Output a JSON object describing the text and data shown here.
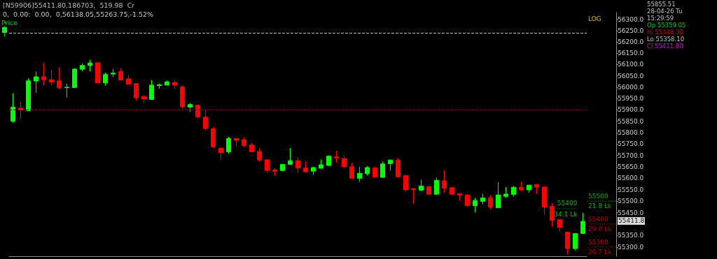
{
  "chart_data": {
    "type": "candlestick",
    "title": "[N59906]55411.80,186703,  519.98  Cr",
    "subtitle": "0,  0.00:  0.00,  0,56138.05,55263.75,-1.52%",
    "ylabel": "Price",
    "categories": [
      null,
      null,
      null,
      null,
      null,
      null,
      null,
      null,
      null,
      null,
      null,
      null,
      null,
      null,
      null,
      null,
      null,
      null,
      null,
      null,
      null,
      null,
      null,
      null,
      null,
      null,
      null,
      null,
      null,
      null,
      null,
      null,
      null,
      null,
      null,
      null,
      null,
      null,
      null,
      null,
      null,
      null,
      null,
      null,
      null,
      null,
      null,
      null,
      null,
      null,
      null,
      null,
      null,
      null,
      null,
      null,
      null,
      null,
      null,
      null,
      null,
      null,
      null,
      null,
      null,
      null,
      null,
      null,
      null,
      null,
      null,
      null,
      null,
      null,
      null
    ],
    "ohlc": [
      [
        55850,
        55973,
        55843,
        55912
      ],
      [
        55908,
        55937,
        55861,
        55899
      ],
      [
        55896,
        56039,
        55896,
        56028
      ],
      [
        56027,
        56069,
        55976,
        56046
      ],
      [
        56046,
        56108,
        56009,
        56033
      ],
      [
        56033,
        56078,
        56009,
        56023
      ],
      [
        56028,
        56087,
        55990,
        55998
      ],
      [
        55998,
        56016,
        55955,
        56000
      ],
      [
        55998,
        56084,
        55998,
        56080
      ],
      [
        56079,
        56105,
        56070,
        56096
      ],
      [
        56096,
        56121,
        56069,
        56107
      ],
      [
        56108,
        56111,
        56019,
        56019
      ],
      [
        56019,
        56065,
        56007,
        56056
      ],
      [
        56058,
        56080,
        56045,
        56062
      ],
      [
        56069,
        56083,
        56031,
        56032
      ],
      [
        56037,
        56054,
        56013,
        56013
      ],
      [
        56016,
        56016,
        55941,
        55953
      ],
      [
        55959,
        55966,
        55929,
        55948
      ],
      [
        55946,
        56032,
        55946,
        56009
      ],
      [
        56007,
        56017,
        55994,
        56011
      ],
      [
        56009,
        56029,
        56009,
        56024
      ],
      [
        56021,
        56029,
        55993,
        56009
      ],
      [
        56001,
        56007,
        55907,
        55914
      ],
      [
        55912,
        55931,
        55891,
        55924
      ],
      [
        55921,
        55921,
        55863,
        55870
      ],
      [
        55868,
        55898,
        55810,
        55818
      ],
      [
        55817,
        55825,
        55733,
        55738
      ],
      [
        55732,
        55735,
        55680,
        55712
      ],
      [
        55716,
        55782,
        55707,
        55774
      ],
      [
        55774,
        55777,
        55741,
        55766
      ],
      [
        55769,
        55779,
        55737,
        55744
      ],
      [
        55746,
        55755,
        55716,
        55716
      ],
      [
        55717,
        55731,
        55673,
        55680
      ],
      [
        55681,
        55681,
        55622,
        55634
      ],
      [
        55636,
        55643,
        55610,
        55630
      ],
      [
        55634,
        55663,
        55630,
        55661
      ],
      [
        55661,
        55733,
        55659,
        55677
      ],
      [
        55677,
        55692,
        55622,
        55645
      ],
      [
        55645,
        55675,
        55628,
        55628
      ],
      [
        55631,
        55649,
        55614,
        55647
      ],
      [
        55644,
        55682,
        55642,
        55659
      ],
      [
        55656,
        55699,
        55656,
        55697
      ],
      [
        55694,
        55720,
        55668,
        55688
      ],
      [
        55687,
        55699,
        55647,
        55650
      ],
      [
        55651,
        55668,
        55598,
        55600
      ],
      [
        55600,
        55650,
        55584,
        55622
      ],
      [
        55620,
        55654,
        55612,
        55647
      ],
      [
        55645,
        55653,
        55605,
        55605
      ],
      [
        55604,
        55673,
        55604,
        55663
      ],
      [
        55664,
        55680,
        55633,
        55680
      ],
      [
        55680,
        55688,
        55606,
        55606
      ],
      [
        55612,
        55612,
        55542,
        55549
      ],
      [
        55554,
        55557,
        55489,
        55550
      ],
      [
        55548,
        55594,
        55542,
        55566
      ],
      [
        55564,
        55564,
        55530,
        55530
      ],
      [
        55530,
        55602,
        55528,
        55591
      ],
      [
        55589,
        55634,
        55536,
        55557
      ],
      [
        55559,
        55559,
        55530,
        55530
      ],
      [
        55533,
        55533,
        55502,
        55526
      ],
      [
        55527,
        55530,
        55480,
        55480
      ],
      [
        55480,
        55515,
        55450,
        55503
      ],
      [
        55499,
        55533,
        55487,
        55514
      ],
      [
        55515,
        55528,
        55464,
        55474
      ],
      [
        55471,
        55583,
        55471,
        55527
      ],
      [
        55521,
        55562,
        55514,
        55531
      ],
      [
        55529,
        55566,
        55521,
        55561
      ],
      [
        55561,
        55585,
        55544,
        55549
      ],
      [
        55549,
        55570,
        55537,
        55570
      ],
      [
        55573,
        55573,
        55531,
        55561
      ],
      [
        55562,
        55562,
        55441,
        55474
      ],
      [
        55477,
        55491,
        55388,
        55416
      ],
      [
        55419,
        55419,
        55367,
        55385
      ],
      [
        55365,
        55365,
        55267,
        55293
      ],
      [
        55293,
        55359,
        55285,
        55359
      ],
      [
        55359.05,
        55448.3,
        55358.1,
        55411.8
      ]
    ],
    "ylim": [
      55260,
      56330
    ],
    "yticks": [
      {
        "value": 55300,
        "label": "55300.0"
      },
      {
        "value": 55350,
        "label": "55350.0"
      },
      {
        "value": 55450,
        "label": "55450.0"
      },
      {
        "value": 55500,
        "label": "55500.0"
      },
      {
        "value": 55550,
        "label": "55550.0"
      },
      {
        "value": 55600,
        "label": "55600.0"
      },
      {
        "value": 55650,
        "label": "55650.0"
      },
      {
        "value": 55700,
        "label": "55700.0"
      },
      {
        "value": 55750,
        "label": "55750.0"
      },
      {
        "value": 55800,
        "label": "55800.0"
      },
      {
        "value": 55850,
        "label": "55850.0"
      },
      {
        "value": 55900,
        "label": "55900.0"
      },
      {
        "value": 55950,
        "label": "55950.0"
      },
      {
        "value": 56000,
        "label": "56000.0"
      },
      {
        "value": 56050,
        "label": "56050.0"
      },
      {
        "value": 56100,
        "label": "56100.0"
      },
      {
        "value": 56150,
        "label": "56150.0"
      },
      {
        "value": 56200,
        "label": "56200.0"
      },
      {
        "value": 56250,
        "label": "56250.0"
      },
      {
        "value": 56300,
        "label": "56300.0"
      }
    ],
    "log": true,
    "grid": false,
    "tick_labels": "y",
    "ref_lines": [
      {
        "axis": "y",
        "value": 56240,
        "color": "#c0c0c0",
        "line_style": "dashed"
      },
      {
        "axis": "y",
        "value": 55900,
        "color": "#8b0000",
        "line_style": "dashed"
      },
      {
        "axis": "y",
        "value": 55500,
        "label": "55500\n21.8 Lk",
        "color": "#00b000",
        "line_style": "dotted"
      },
      {
        "axis": "y",
        "value": 55400,
        "label": "55400\n29.0 Lk",
        "color": "#c00000",
        "line_style": "dotted"
      },
      {
        "axis": "y",
        "value": 55300,
        "label": "55300\n26.7 Lk",
        "color": "#c00000",
        "line_style": "dotted"
      }
    ],
    "annotations": [
      "LOG",
      "55855.51",
      "28-04-26 Tu",
      "15:29:59",
      "Op 55359.05",
      "Hi 55448.30",
      "Lo 55358.10",
      "Cl 55411.80",
      "55400\n34.1 Lk",
      "55411.8"
    ]
  }
}
